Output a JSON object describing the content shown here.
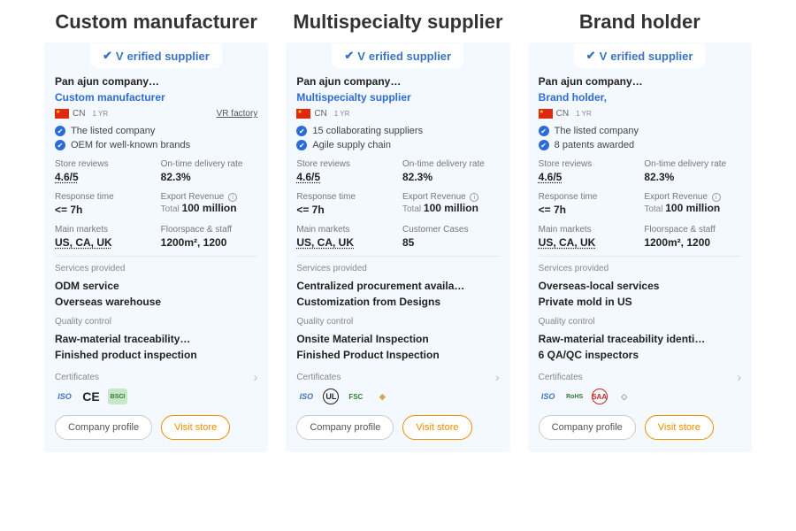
{
  "columns": [
    {
      "title": "Custom manufacturer",
      "verified": "erified supplier",
      "company_name": "Pan                        ajun company…",
      "supplier_type": "Custom manufacturer",
      "country": "CN",
      "years": "1 YR",
      "vr": "VR factory",
      "points": [
        "The listed company",
        "OEM for well-known brands"
      ],
      "m": {
        "reviews_l": "Store reviews",
        "reviews_v": "4.6/5",
        "ontime_l": "On-time delivery rate",
        "ontime_v": "82.3%",
        "resp_l": "Response time",
        "resp_v": "<= 7h",
        "rev_l": "Export Revenue",
        "rev_total": "Total ",
        "rev_v": "100 million",
        "mkt_l": "Main markets",
        "mkt_v": "US, CA, UK",
        "extra_l": "Floorspace & staff",
        "extra_v": "1200m², 1200"
      },
      "services_l": "Services provided",
      "services": "ODM service\nOverseas warehouse",
      "qc_l": "Quality control",
      "qc": "Raw-material traceability…\nFinished product inspection",
      "cert_l": "Certificates",
      "certs": [
        {
          "txt": "ISO",
          "color": "#3a74c4",
          "style": "italic"
        },
        {
          "txt": "CE",
          "color": "#222",
          "style": "bold",
          "size": "14px"
        },
        {
          "txt": "BSCI",
          "color": "#2e7d32",
          "bg": "#c8e6c9",
          "size": "7px"
        }
      ],
      "btn1": "Company profile",
      "btn2": "Visit store"
    },
    {
      "title": "Multispecialty supplier",
      "verified": "erified supplier",
      "company_name": "Pan                        ajun company…",
      "supplier_type": "Multispecialty supplier",
      "country": "CN",
      "years": "1 YR",
      "vr": "",
      "points": [
        "15 collaborating suppliers",
        "Agile supply chain"
      ],
      "m": {
        "reviews_l": "Store reviews",
        "reviews_v": "4.6/5",
        "ontime_l": "On-time delivery rate",
        "ontime_v": "82.3%",
        "resp_l": "Response time",
        "resp_v": "<= 7h",
        "rev_l": "Export Revenue",
        "rev_total": "Total ",
        "rev_v": "100 million",
        "mkt_l": "Main markets",
        "mkt_v": "US, CA, UK",
        "extra_l": "Customer Cases",
        "extra_v": "85"
      },
      "services_l": "Services provided",
      "services": "Centralized procurement availa…\nCustomization from Designs",
      "qc_l": "Quality control",
      "qc": "Onsite Material Inspection\nFinished Product Inspection",
      "cert_l": "Certificates",
      "certs": [
        {
          "txt": "ISO",
          "color": "#3a74c4",
          "style": "italic"
        },
        {
          "txt": "UL",
          "color": "#222",
          "border": "1px solid #222",
          "round": true
        },
        {
          "txt": "FSC",
          "color": "#2e7d32",
          "size": "8px"
        },
        {
          "txt": "◆",
          "color": "#d4a84a"
        }
      ],
      "btn1": "Company profile",
      "btn2": "Visit store"
    },
    {
      "title": "Brand holder",
      "verified": "erified supplier",
      "company_name": "Pan                        ajun company…",
      "supplier_type": "Brand holder,",
      "country": "CN",
      "years": "1 YR",
      "vr": "",
      "points": [
        "The listed company",
        "8 patents awarded"
      ],
      "m": {
        "reviews_l": "Store reviews",
        "reviews_v": "4.6/5",
        "ontime_l": "On-time delivery rate",
        "ontime_v": "82.3%",
        "resp_l": "Response time",
        "resp_v": "<= 7h",
        "rev_l": "Export Revenue",
        "rev_total": "Total ",
        "rev_v": "100 million",
        "mkt_l": "Main markets",
        "mkt_v": "US, CA, UK",
        "extra_l": "Floorspace & staff",
        "extra_v": "1200m², 1200"
      },
      "services_l": "Services provided",
      "services": "Overseas-local services\nPrivate mold in US",
      "qc_l": "Quality control",
      "qc": "Raw-material traceability identi…\n6 QA/QC inspectors",
      "cert_l": "Certificates",
      "certs": [
        {
          "txt": "ISO",
          "color": "#3a74c4",
          "style": "italic"
        },
        {
          "txt": "RoHS",
          "color": "#2e7d32",
          "size": "7px"
        },
        {
          "txt": "SAA",
          "color": "#c62828",
          "size": "8px",
          "border": "1px solid #c62828",
          "round": true
        },
        {
          "txt": "◇",
          "color": "#999"
        }
      ],
      "btn1": "Company profile",
      "btn2": "Visit store"
    }
  ]
}
